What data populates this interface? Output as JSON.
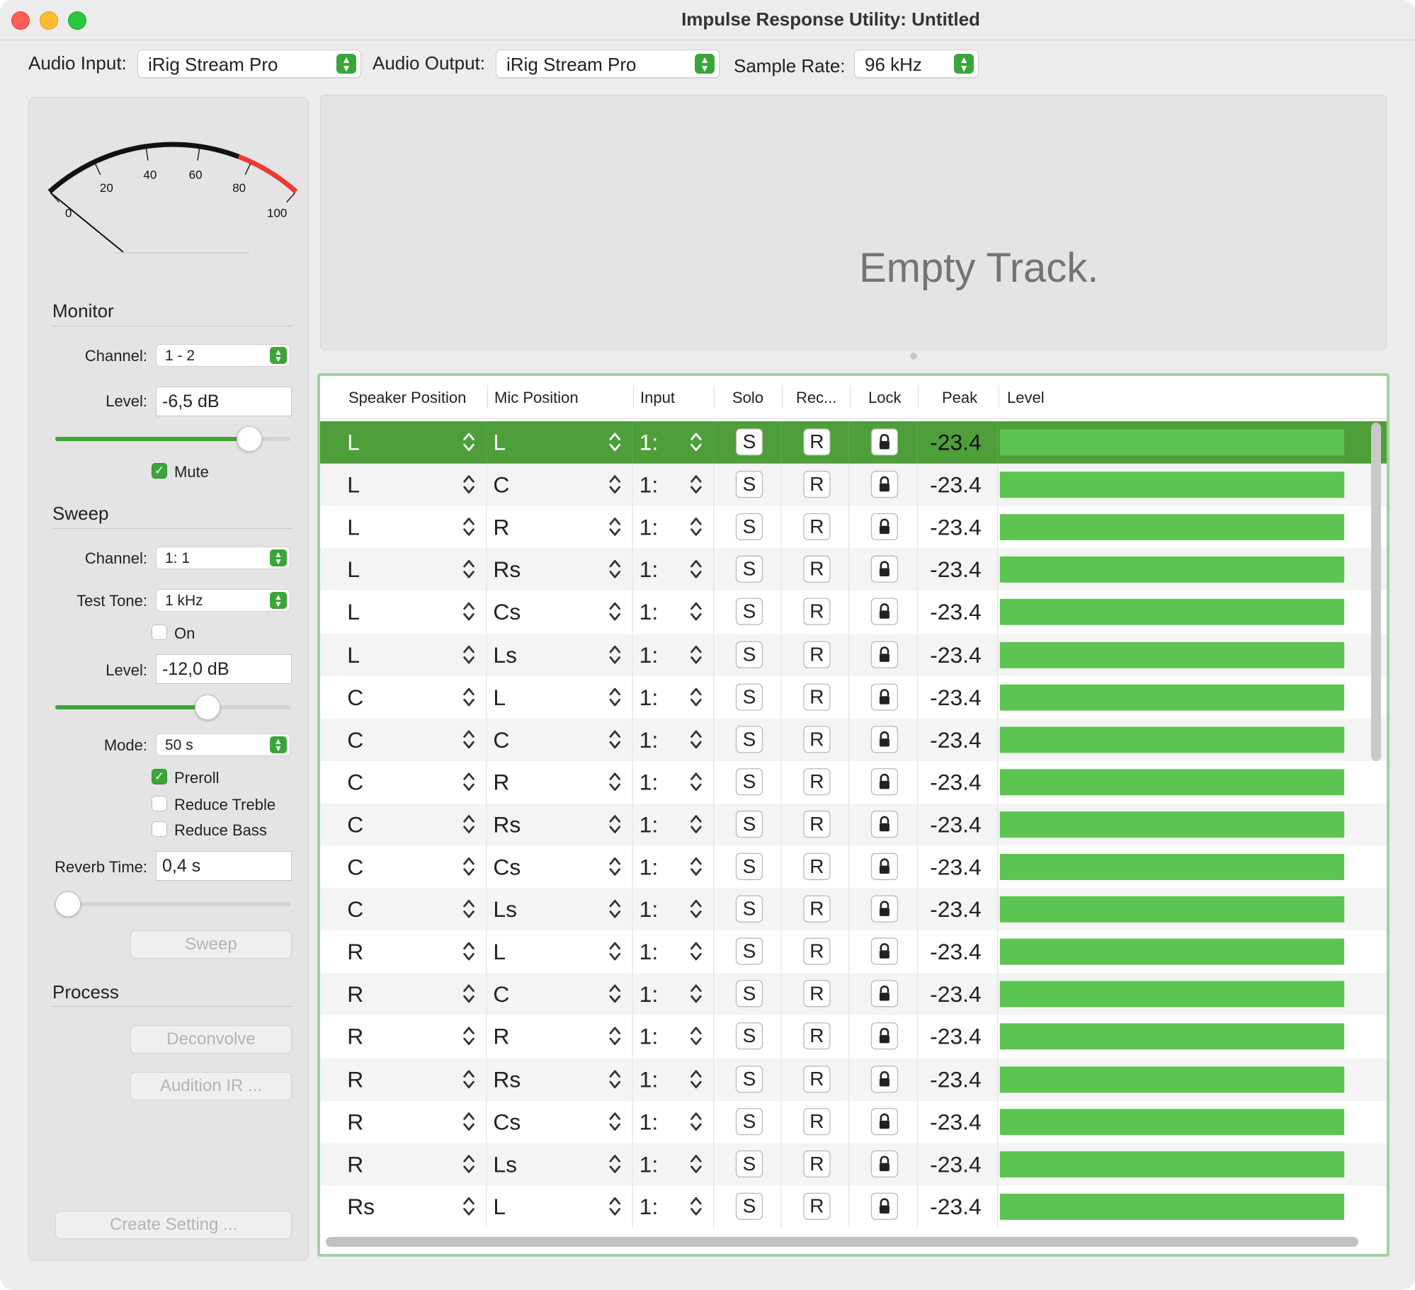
{
  "window": {
    "title": "Impulse Response Utility: Untitled"
  },
  "toolbar": {
    "audio_input_label": "Audio Input:",
    "audio_input_value": "iRig Stream Pro",
    "audio_output_label": "Audio Output:",
    "audio_output_value": "iRig Stream Pro",
    "sample_rate_label": "Sample Rate:",
    "sample_rate_value": "96 kHz"
  },
  "meter": {
    "ticks": [
      "0",
      "20",
      "40",
      "60",
      "80",
      "100"
    ],
    "needle_value": 0,
    "red_zone_start": 75
  },
  "monitor": {
    "title": "Monitor",
    "channel_label": "Channel:",
    "channel_value": "1 - 2",
    "level_label": "Level:",
    "level_value": "-6,5 dB",
    "level_slider": 0.86,
    "mute_label": "Mute",
    "mute_checked": true
  },
  "sweep": {
    "title": "Sweep",
    "channel_label": "Channel:",
    "channel_value": "1: 1",
    "test_tone_label": "Test Tone:",
    "test_tone_value": "1 kHz",
    "on_label": "On",
    "on_checked": false,
    "level_label": "Level:",
    "level_value": "-12,0 dB",
    "level_slider": 0.66,
    "mode_label": "Mode:",
    "mode_value": "50 s",
    "preroll_label": "Preroll",
    "preroll_checked": true,
    "reduce_treble_label": "Reduce Treble",
    "reduce_treble_checked": false,
    "reduce_bass_label": "Reduce Bass",
    "reduce_bass_checked": false,
    "reverb_time_label": "Reverb Time:",
    "reverb_time_value": "0,4 s",
    "reverb_slider": 0.0,
    "sweep_button": "Sweep"
  },
  "process": {
    "title": "Process",
    "deconvolve_button": "Deconvolve",
    "audition_button": "Audition IR ...",
    "create_button": "Create Setting ..."
  },
  "waveform": {
    "empty_text": "Empty Track."
  },
  "table": {
    "headers": {
      "speaker": "Speaker Position",
      "mic": "Mic Position",
      "input": "Input",
      "solo": "Solo",
      "rec": "Rec...",
      "lock": "Lock",
      "peak": "Peak",
      "level": "Level"
    },
    "solo_label": "S",
    "rec_label": "R",
    "rows": [
      {
        "speaker": "L",
        "mic": "L",
        "input": "1:",
        "peak": "-23.4",
        "level": 0.98,
        "selected": true
      },
      {
        "speaker": "L",
        "mic": "C",
        "input": "1:",
        "peak": "-23.4",
        "level": 0.98
      },
      {
        "speaker": "L",
        "mic": "R",
        "input": "1:",
        "peak": "-23.4",
        "level": 0.98
      },
      {
        "speaker": "L",
        "mic": "Rs",
        "input": "1:",
        "peak": "-23.4",
        "level": 0.98
      },
      {
        "speaker": "L",
        "mic": "Cs",
        "input": "1:",
        "peak": "-23.4",
        "level": 0.98
      },
      {
        "speaker": "L",
        "mic": "Ls",
        "input": "1:",
        "peak": "-23.4",
        "level": 0.98
      },
      {
        "speaker": "C",
        "mic": "L",
        "input": "1:",
        "peak": "-23.4",
        "level": 0.98
      },
      {
        "speaker": "C",
        "mic": "C",
        "input": "1:",
        "peak": "-23.4",
        "level": 0.98
      },
      {
        "speaker": "C",
        "mic": "R",
        "input": "1:",
        "peak": "-23.4",
        "level": 0.98
      },
      {
        "speaker": "C",
        "mic": "Rs",
        "input": "1:",
        "peak": "-23.4",
        "level": 0.98
      },
      {
        "speaker": "C",
        "mic": "Cs",
        "input": "1:",
        "peak": "-23.4",
        "level": 0.98
      },
      {
        "speaker": "C",
        "mic": "Ls",
        "input": "1:",
        "peak": "-23.4",
        "level": 0.98
      },
      {
        "speaker": "R",
        "mic": "L",
        "input": "1:",
        "peak": "-23.4",
        "level": 0.98
      },
      {
        "speaker": "R",
        "mic": "C",
        "input": "1:",
        "peak": "-23.4",
        "level": 0.98
      },
      {
        "speaker": "R",
        "mic": "R",
        "input": "1:",
        "peak": "-23.4",
        "level": 0.98
      },
      {
        "speaker": "R",
        "mic": "Rs",
        "input": "1:",
        "peak": "-23.4",
        "level": 0.98
      },
      {
        "speaker": "R",
        "mic": "Cs",
        "input": "1:",
        "peak": "-23.4",
        "level": 0.98
      },
      {
        "speaker": "R",
        "mic": "Ls",
        "input": "1:",
        "peak": "-23.4",
        "level": 0.98
      },
      {
        "speaker": "Rs",
        "mic": "L",
        "input": "1:",
        "peak": "-23.4",
        "level": 0.98
      }
    ]
  },
  "colors": {
    "accent": "#3ba53a",
    "selection": "#4e9e39",
    "level_bar": "#5cc450",
    "meter_red": "#ee3b32"
  }
}
